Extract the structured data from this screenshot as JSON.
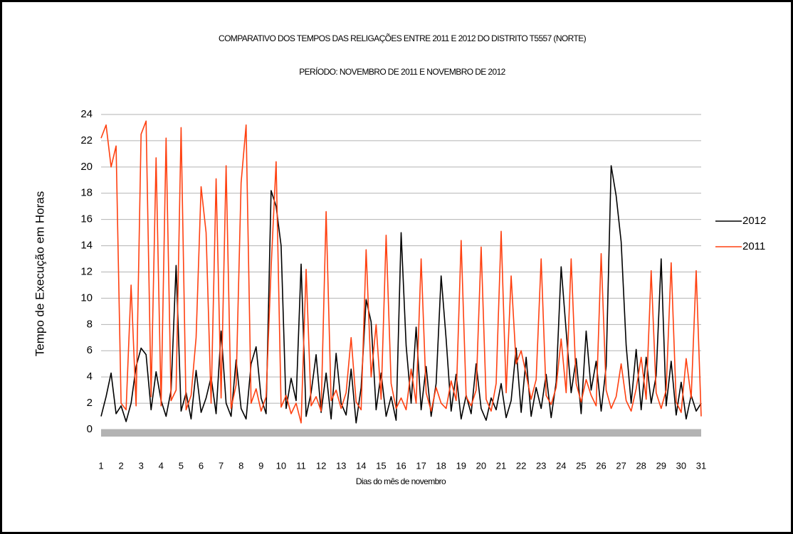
{
  "chart_data": {
    "type": "line",
    "title": "COMPARATIVO DOS TEMPOS DAS RELIGAÇÕES ENTRE 2011 E 2012 DO DISTRITO T5557 (NORTE)",
    "subtitle": "PERÍODO: NOVEMBRO DE 2011 E NOVEMBRO DE 2012",
    "x_label": "Dias do mês de novembro",
    "y_label": "Tempo de Execução em Horas",
    "x": [
      1,
      1.25,
      1.5,
      1.75,
      2,
      2.25,
      2.5,
      2.75,
      3,
      3.25,
      3.5,
      3.75,
      4,
      4.25,
      4.5,
      4.75,
      5,
      5.25,
      5.5,
      5.75,
      6,
      6.25,
      6.5,
      6.75,
      7,
      7.25,
      7.5,
      7.75,
      8,
      8.25,
      8.5,
      8.75,
      9,
      9.25,
      9.5,
      9.75,
      10,
      10.25,
      10.5,
      10.75,
      11,
      11.25,
      11.5,
      11.75,
      12,
      12.25,
      12.5,
      12.75,
      13,
      13.25,
      13.5,
      13.75,
      14,
      14.25,
      14.5,
      14.75,
      15,
      15.25,
      15.5,
      15.75,
      16,
      16.25,
      16.5,
      16.75,
      17,
      17.25,
      17.5,
      17.75,
      18,
      18.25,
      18.5,
      18.75,
      19,
      19.25,
      19.5,
      19.75,
      20,
      20.25,
      20.5,
      20.75,
      21,
      21.25,
      21.5,
      21.75,
      22,
      22.25,
      22.5,
      22.75,
      23,
      23.25,
      23.5,
      23.75,
      24,
      24.25,
      24.5,
      24.75,
      25,
      25.25,
      25.5,
      25.75,
      26,
      26.25,
      26.5,
      26.75,
      27,
      27.25,
      27.5,
      27.75,
      28,
      28.25,
      28.5,
      28.75,
      29,
      29.25,
      29.5,
      29.75,
      30,
      30.25,
      30.5,
      30.75,
      31
    ],
    "series": [
      {
        "name": "2012",
        "color": "#000000",
        "values": [
          1,
          2.5,
          4.3,
          1.2,
          1.8,
          0.6,
          2,
          4.8,
          6.2,
          5.7,
          1.5,
          4.4,
          2.2,
          1,
          3,
          12.5,
          1.4,
          2.8,
          0.8,
          4.5,
          1.3,
          2.4,
          4,
          1.2,
          7.5,
          2,
          1,
          5.3,
          1.6,
          0.8,
          5,
          6.3,
          2.4,
          1.2,
          18.2,
          17,
          14,
          1.6,
          3.9,
          2.2,
          12.6,
          1,
          2.8,
          5.7,
          1.3,
          4.3,
          0.8,
          5.8,
          2,
          1.1,
          4.6,
          0.5,
          3.2,
          9.9,
          8.2,
          1.5,
          4.3,
          1,
          2.5,
          0.7,
          15,
          6.4,
          2,
          7.8,
          1.5,
          4.8,
          1,
          3.5,
          11.7,
          6.9,
          1.4,
          4.2,
          0.8,
          2.6,
          1.2,
          5,
          1.6,
          0.7,
          2.4,
          1.5,
          3.5,
          0.9,
          2.2,
          6.2,
          1.3,
          5.5,
          1,
          3.2,
          1.6,
          4.2,
          0.9,
          3.6,
          12.4,
          7.5,
          2.8,
          5.4,
          1.2,
          7.5,
          3,
          5.2,
          1.4,
          4.8,
          20.1,
          17.8,
          14.3,
          6.4,
          2,
          6.1,
          1.5,
          5.5,
          2,
          4.1,
          13,
          1.8,
          5.2,
          1.1,
          3.6,
          0.8,
          2.6,
          1.4,
          2
        ]
      },
      {
        "name": "2011",
        "color": "#ff4010",
        "values": [
          22.2,
          23.2,
          20,
          21.6,
          2,
          1.5,
          11,
          1.8,
          22.5,
          23.5,
          2.5,
          20.7,
          1.8,
          22.2,
          2.2,
          3,
          23,
          1.5,
          2.6,
          7,
          18.5,
          15,
          2,
          19.1,
          2.4,
          20.1,
          1.6,
          3.4,
          18.8,
          23.2,
          2,
          3.1,
          1.4,
          2.5,
          12.3,
          20.4,
          1.7,
          2.6,
          1.2,
          2,
          0.5,
          12.2,
          1.8,
          2.5,
          1.4,
          16.6,
          2.2,
          3,
          1.6,
          2.8,
          7,
          2.1,
          1.5,
          13.7,
          4,
          8,
          2.3,
          14.8,
          3.5,
          1.6,
          2.4,
          1.5,
          4.6,
          2,
          13,
          2.8,
          1.4,
          3.2,
          2,
          1.6,
          3.7,
          2.2,
          14.4,
          2.5,
          1.8,
          3,
          13.9,
          2.3,
          1.4,
          3.5,
          15.1,
          2.8,
          11.7,
          5,
          6,
          4.2,
          2.3,
          3.8,
          13,
          2.6,
          1.9,
          3.2,
          6.9,
          2.8,
          13,
          3.5,
          2.1,
          3.8,
          2.6,
          1.8,
          13.4,
          3,
          1.6,
          2.5,
          5,
          2.2,
          1.4,
          3.1,
          5.5,
          2.3,
          12.1,
          2.8,
          1.6,
          3,
          12.7,
          2.1,
          1.3,
          5.4,
          2.4,
          12.1,
          1
        ]
      }
    ],
    "xlim": [
      1,
      31
    ],
    "xticks": [
      1,
      2,
      3,
      4,
      5,
      6,
      7,
      8,
      9,
      10,
      11,
      12,
      13,
      14,
      15,
      16,
      17,
      18,
      19,
      20,
      21,
      22,
      23,
      24,
      25,
      26,
      27,
      28,
      29,
      30,
      31
    ],
    "ylim": [
      0,
      24
    ],
    "yticks": [
      0,
      2,
      4,
      6,
      8,
      10,
      12,
      14,
      16,
      18,
      20,
      22,
      24
    ],
    "grid": true,
    "legend": "right"
  }
}
